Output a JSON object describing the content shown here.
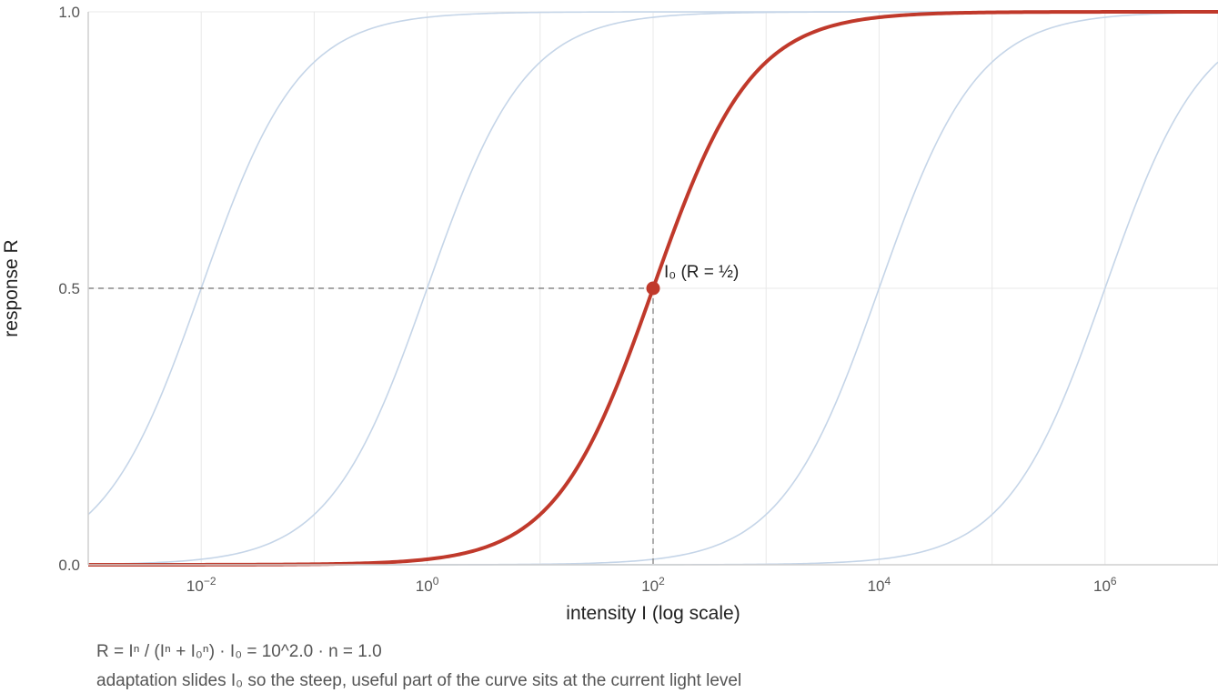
{
  "chart_data": {
    "type": "line",
    "xlabel": "intensity I  (log scale)",
    "ylabel": "response R",
    "x_scale": "log",
    "xlim": [
      0.001,
      10000000
    ],
    "ylim": [
      0,
      1
    ],
    "x_ticks": [
      {
        "value": 0.01,
        "base": "10",
        "exp": "−2"
      },
      {
        "value": 1,
        "base": "10",
        "exp": "0"
      },
      {
        "value": 100,
        "base": "10",
        "exp": "2"
      },
      {
        "value": 10000,
        "base": "10",
        "exp": "4"
      },
      {
        "value": 1000000,
        "base": "10",
        "exp": "6"
      }
    ],
    "y_ticks": [
      {
        "value": 0,
        "label": "0.0"
      },
      {
        "value": 0.5,
        "label": "0.5"
      },
      {
        "value": 1,
        "label": "1.0"
      }
    ],
    "grid": true,
    "formula": "R = Iⁿ / (Iⁿ + I₀ⁿ)",
    "n": 1.0,
    "series": [
      {
        "I0": 0.01,
        "role": "background",
        "color": "#c5d5e8"
      },
      {
        "I0": 1,
        "role": "background",
        "color": "#c5d5e8"
      },
      {
        "I0": 100,
        "role": "active",
        "color": "#c0392b"
      },
      {
        "I0": 10000,
        "role": "background",
        "color": "#c5d5e8"
      },
      {
        "I0": 1000000,
        "role": "background",
        "color": "#c5d5e8"
      }
    ],
    "marker": {
      "x": 100,
      "y": 0.5,
      "label": "I₀  (R = ½)",
      "color": "#c0392b"
    }
  },
  "caption": {
    "formula_line": "R = Iⁿ / (Iⁿ + I₀ⁿ)   ·   I₀ = 10^2.0   ·   n = 1.0",
    "note_line": "adaptation slides I₀ so the steep, useful part of the curve sits at the current light level"
  }
}
